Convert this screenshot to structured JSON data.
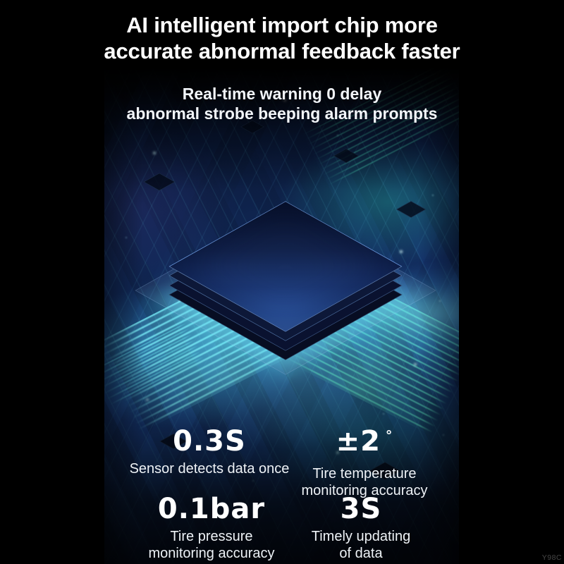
{
  "header": {
    "title_line1": "AI intelligent import chip more",
    "title_line2": "accurate abnormal feedback faster",
    "subtitle_line1": "Real-time warning 0 delay",
    "subtitle_line2": "abnormal strobe beeping alarm prompts"
  },
  "stats": [
    {
      "value": "0.3S",
      "label": "Sensor detects data once"
    },
    {
      "value": "±2",
      "unit": "°",
      "label": "Tire temperature monitoring accuracy"
    },
    {
      "value": "0.1bar",
      "label": "Tire pressure monitoring accuracy"
    },
    {
      "value": "3S",
      "label": "Timely updating of data"
    }
  ],
  "watermark": "Y98C",
  "colors": {
    "background": "#000000",
    "text": "#ffffff",
    "accent_cyan": "#46e5e0",
    "accent_teal": "#35d9b8",
    "chip_blue": "#2f5aa8",
    "board_blue": "#1b4186"
  }
}
